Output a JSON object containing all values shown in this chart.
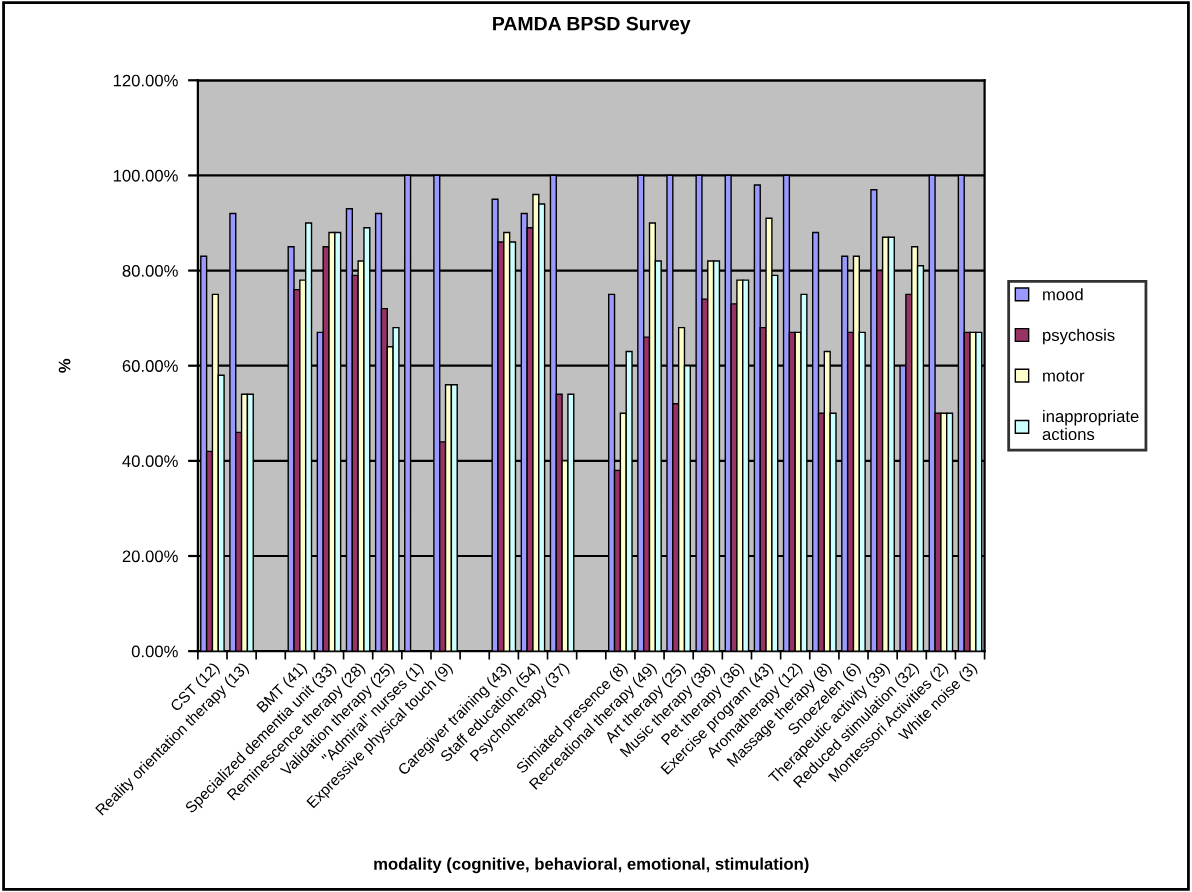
{
  "chart_data": {
    "type": "bar",
    "title": "PAMDA BPSD Survey",
    "xlabel": "modality (cognitive, behavioral, emotional, stimulation)",
    "ylabel": "%",
    "categories": [
      "CST (12)",
      "Reality orientation therapy (13)",
      null,
      "BMT (41)",
      "Specialized dementia unit (33)",
      "Reminescence therapy (28)",
      "Validation therapy (25)",
      "\"Admiral\" nurses (1)",
      "Expressive physical touch (9)",
      null,
      "Caregiver training (43)",
      "Staff education (54)",
      "Psychotherapy (37)",
      null,
      "Simiated presence (8)",
      "Recreational therapy (49)",
      "Art therapy (25)",
      "Music therapy (38)",
      "Pet therapy (36)",
      "Exercise program (43)",
      "Aromatherapy (12)",
      "Massage therapy (8)",
      "Snoezelen (6)",
      "Therapeutic activity (39)",
      "Reduced stimulation (32)",
      "Montessori Activities (2)",
      "White noise (3)"
    ],
    "series": [
      {
        "name": "mood",
        "color": "#9999ff",
        "values": [
          83,
          92,
          null,
          85,
          67,
          93,
          92,
          100,
          100,
          null,
          95,
          92,
          100,
          null,
          75,
          100,
          100,
          100,
          100,
          98,
          100,
          88,
          83,
          97,
          60,
          100,
          100
        ]
      },
      {
        "name": "psychosis",
        "color": "#993366",
        "values": [
          42,
          46,
          null,
          76,
          85,
          79,
          72,
          null,
          44,
          null,
          86,
          89,
          54,
          null,
          38,
          66,
          52,
          74,
          73,
          68,
          67,
          50,
          67,
          80,
          75,
          50,
          67
        ]
      },
      {
        "name": "motor",
        "color": "#ffffcc",
        "values": [
          75,
          54,
          null,
          78,
          88,
          82,
          64,
          null,
          56,
          null,
          88,
          96,
          40,
          null,
          50,
          90,
          68,
          82,
          78,
          91,
          67,
          63,
          83,
          87,
          85,
          50,
          67
        ]
      },
      {
        "name": "inappropriate\nactions",
        "color": "#ccffff",
        "values": [
          58,
          54,
          null,
          90,
          88,
          89,
          68,
          null,
          56,
          null,
          86,
          94,
          54,
          null,
          63,
          82,
          60,
          82,
          78,
          79,
          75,
          50,
          67,
          87,
          81,
          50,
          67
        ]
      }
    ],
    "ylim": [
      0,
      120
    ],
    "yticks": [
      {
        "value": 0,
        "label": "0.00%"
      },
      {
        "value": 20,
        "label": "20.00%"
      },
      {
        "value": 40,
        "label": "40.00%"
      },
      {
        "value": 60,
        "label": "60.00%"
      },
      {
        "value": 80,
        "label": "80.00%"
      },
      {
        "value": 100,
        "label": "100.00%"
      },
      {
        "value": 120,
        "label": "120.00%"
      }
    ],
    "grid": "y",
    "legend": "right"
  }
}
